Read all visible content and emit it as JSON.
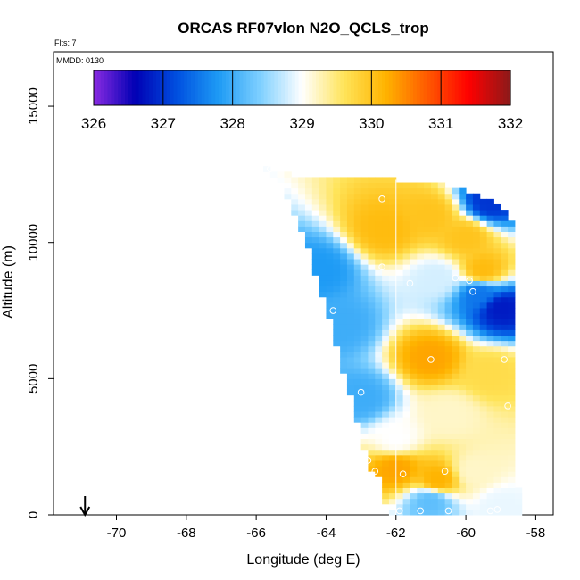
{
  "chart_data": {
    "type": "heatmap",
    "title": "ORCAS RF07vlon N2O_QCLS_trop",
    "notes": {
      "flights": "Flts: 7",
      "date": "MMDD: 0130"
    },
    "xlabel": "Longitude (deg E)",
    "ylabel": "Altitude (m)",
    "xlim": [
      -71.8,
      -57.5
    ],
    "ylim": [
      0,
      17000
    ],
    "x_ticks": [
      -70,
      -68,
      -66,
      -64,
      -62,
      -60,
      -58
    ],
    "x_tick_labels": [
      "-70",
      "-68",
      "-66",
      "-64",
      "-62",
      "-60",
      "-58"
    ],
    "y_ticks": [
      0,
      5000,
      10000,
      15000
    ],
    "y_tick_labels": [
      "0",
      "5000",
      "10000",
      "15000"
    ],
    "colorbar": {
      "min": 326,
      "max": 332,
      "ticks": [
        326,
        327,
        328,
        329,
        330,
        331,
        332
      ],
      "tick_labels": [
        "326",
        "327",
        "328",
        "329",
        "330",
        "331",
        "332"
      ],
      "colors": [
        "#8a2be2",
        "#0000b4",
        "#0050e0",
        "#1e9bf5",
        "#7fd0ff",
        "#ffffff",
        "#ffe45a",
        "#ffb400",
        "#ff5a00",
        "#ff0000",
        "#8b1a1a"
      ]
    },
    "curtain": {
      "left_edge": [
        [
          -65.7,
          12700
        ],
        [
          -65.3,
          12200
        ],
        [
          -64.9,
          11000
        ],
        [
          -64.5,
          9800
        ],
        [
          -64.2,
          8300
        ],
        [
          -63.8,
          6800
        ],
        [
          -63.5,
          5200
        ],
        [
          -63.2,
          3900
        ],
        [
          -62.9,
          2500
        ],
        [
          -62.7,
          1700
        ],
        [
          -62.4,
          1200
        ],
        [
          -62.3,
          400
        ],
        [
          -62.2,
          0
        ]
      ],
      "top_edge": [
        [
          -65.7,
          12700
        ],
        [
          -64.7,
          12400
        ],
        [
          -62.0,
          12300
        ],
        [
          -61.0,
          12200
        ],
        [
          -60.0,
          11900
        ],
        [
          -59.4,
          11600
        ],
        [
          -58.8,
          11200
        ],
        [
          -58.6,
          10500
        ]
      ],
      "right_edge": [
        [
          -58.6,
          10500
        ],
        [
          -58.5,
          5000
        ],
        [
          -58.5,
          1000
        ],
        [
          -58.4,
          300
        ],
        [
          -58.4,
          0
        ]
      ],
      "features": [
        {
          "lon": -62.3,
          "alt": 10500,
          "value": 330.1
        },
        {
          "lon": -61.0,
          "alt": 11000,
          "value": 330.0
        },
        {
          "lon": -60.0,
          "alt": 10200,
          "value": 330.0
        },
        {
          "lon": -59.3,
          "alt": 11500,
          "value": 327.0
        },
        {
          "lon": -60.8,
          "alt": 8700,
          "value": 328.8
        },
        {
          "lon": -59.6,
          "alt": 8100,
          "value": 327.5
        },
        {
          "lon": -59.0,
          "alt": 7600,
          "value": 326.8
        },
        {
          "lon": -59.5,
          "alt": 9000,
          "value": 330.1
        },
        {
          "lon": -64.2,
          "alt": 9000,
          "value": 327.8
        },
        {
          "lon": -63.6,
          "alt": 7000,
          "value": 328.0
        },
        {
          "lon": -61.0,
          "alt": 5800,
          "value": 330.3
        },
        {
          "lon": -59.3,
          "alt": 5200,
          "value": 329.7
        },
        {
          "lon": -60.5,
          "alt": 3700,
          "value": 329.2
        },
        {
          "lon": -62.0,
          "alt": 2800,
          "value": 329.0
        },
        {
          "lon": -62.0,
          "alt": 1700,
          "value": 330.3
        },
        {
          "lon": -60.8,
          "alt": 1300,
          "value": 330.2
        },
        {
          "lon": -59.8,
          "alt": 1600,
          "value": 329.2
        },
        {
          "lon": -61.0,
          "alt": 500,
          "value": 328.2
        },
        {
          "lon": -63.0,
          "alt": 4300,
          "value": 328.0
        },
        {
          "lon": -59.0,
          "alt": 300,
          "value": 328.9
        }
      ]
    },
    "flight_track": [
      {
        "lon": -62.4,
        "alt": 11600
      },
      {
        "lon": -62.4,
        "alt": 9100
      },
      {
        "lon": -61.6,
        "alt": 8500
      },
      {
        "lon": -60.3,
        "alt": 8700
      },
      {
        "lon": -59.9,
        "alt": 8600
      },
      {
        "lon": -59.8,
        "alt": 8200
      },
      {
        "lon": -63.8,
        "alt": 7500
      },
      {
        "lon": -61.0,
        "alt": 5700
      },
      {
        "lon": -58.9,
        "alt": 5700
      },
      {
        "lon": -63.0,
        "alt": 4500
      },
      {
        "lon": -58.8,
        "alt": 4000
      },
      {
        "lon": -62.8,
        "alt": 2000
      },
      {
        "lon": -62.6,
        "alt": 1600
      },
      {
        "lon": -61.8,
        "alt": 1500
      },
      {
        "lon": -60.6,
        "alt": 1600
      },
      {
        "lon": -61.9,
        "alt": 150
      },
      {
        "lon": -61.3,
        "alt": 150
      },
      {
        "lon": -60.5,
        "alt": 150
      },
      {
        "lon": -59.3,
        "alt": 150
      },
      {
        "lon": -59.1,
        "alt": 200
      },
      {
        "lon": -58.4,
        "alt": 10400
      },
      {
        "lon": -65.6,
        "alt": 12700
      }
    ],
    "vertical_line": {
      "lon": -62.0
    },
    "arrow_marker": {
      "lon": -70.9,
      "direction": "down"
    }
  }
}
